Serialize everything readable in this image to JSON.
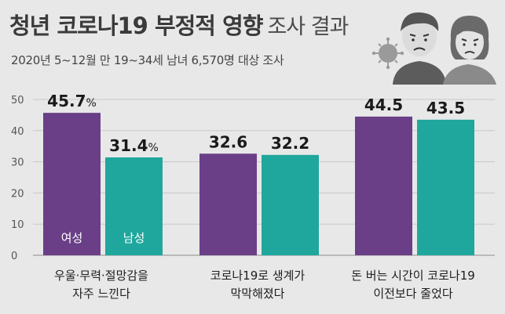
{
  "header": {
    "title_main": "청년 코로나19 부정적 영향",
    "title_sub": "조사 결과",
    "subtitle": "2020년 5~12월 만 19~34세 남녀 6,570명 대상 조사"
  },
  "colors": {
    "female": "#6a3f87",
    "male": "#1fa79d",
    "gridline": "#c9c9c9",
    "background": "#e8e8e8"
  },
  "chart_data": {
    "type": "bar",
    "title": "청년 코로나19 부정적 영향 조사 결과",
    "ylim": [
      0,
      50
    ],
    "yticks": [
      "0",
      "10",
      "20",
      "30",
      "40",
      "50"
    ],
    "categories": [
      [
        "우울·무력·절망감을",
        "자주 느낀다"
      ],
      [
        "코로나19로 생계가",
        "막막해졌다"
      ],
      [
        "돈 버는 시간이 코로나19",
        "이전보다 줄었다"
      ]
    ],
    "series": [
      {
        "name": "여성",
        "values": [
          45.7,
          32.6,
          44.5
        ],
        "labels": [
          "45.7%",
          "32.6",
          "44.5"
        ]
      },
      {
        "name": "남성",
        "values": [
          31.4,
          32.2,
          43.5
        ],
        "labels": [
          "31.4%",
          "32.2",
          "43.5"
        ]
      }
    ]
  }
}
